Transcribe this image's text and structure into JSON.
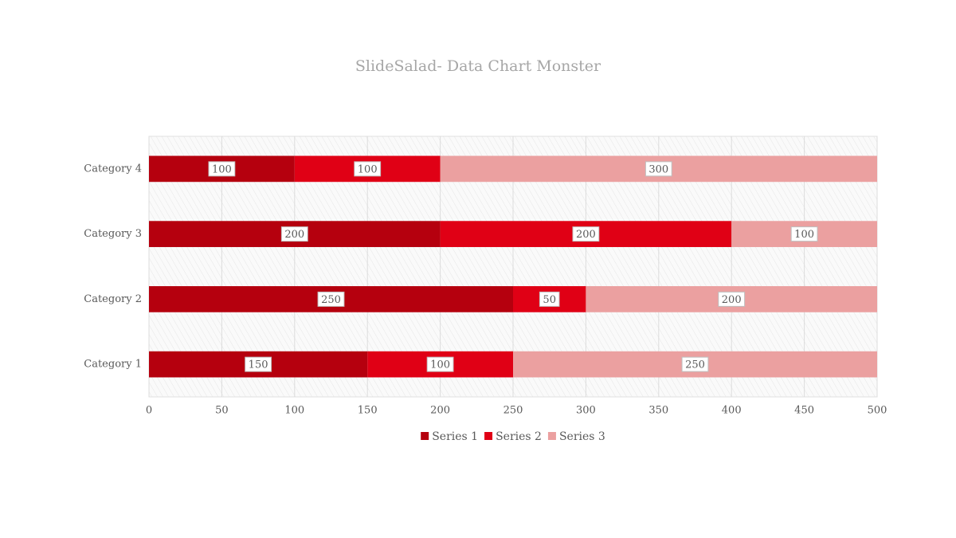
{
  "chart_data": {
    "type": "bar",
    "orientation": "horizontal",
    "stacked": true,
    "title": "SlideSalad- Data Chart Monster",
    "categories": [
      "Category 1",
      "Category 2",
      "Category 3",
      "Category 4"
    ],
    "series": [
      {
        "name": "Series 1",
        "color": "#b5000e",
        "values": [
          150,
          250,
          200,
          100
        ]
      },
      {
        "name": "Series 2",
        "color": "#e00015",
        "values": [
          100,
          50,
          200,
          100
        ]
      },
      {
        "name": "Series 3",
        "color": "#eba0a0",
        "values": [
          250,
          200,
          100,
          300
        ]
      }
    ],
    "xlim": [
      0,
      500
    ],
    "xticks": [
      0,
      50,
      100,
      150,
      200,
      250,
      300,
      350,
      400,
      450,
      500
    ],
    "grid": true,
    "legend": "bottom",
    "data_labels": true
  }
}
